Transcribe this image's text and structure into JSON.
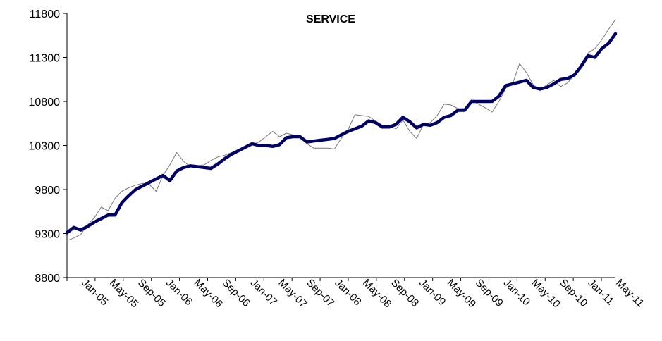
{
  "chart_data": {
    "type": "line",
    "title": "SERVICE",
    "xlabel": "",
    "ylabel": "",
    "ylim": [
      8800,
      11800
    ],
    "yticks": [
      "8800",
      "9300",
      "9800",
      "10300",
      "10800",
      "11300",
      "11800"
    ],
    "xticks": [
      "Jan-05",
      "May-05",
      "Sep-05",
      "Jan-06",
      "May-06",
      "Sep-06",
      "Jan-07",
      "May-07",
      "Sep-07",
      "Jan-08",
      "May-08",
      "Sep-08",
      "Jan-09",
      "May-09",
      "Sep-09",
      "Jan-10",
      "May-10",
      "Sep-10",
      "Jan-11",
      "May-11"
    ],
    "grid": false,
    "legend": "none",
    "colors": {
      "thick": "#000066",
      "thin": "#777777"
    },
    "series": [
      {
        "style": "thin",
        "values": [
          9220,
          9250,
          9290,
          9400,
          9480,
          9600,
          9560,
          9700,
          9780,
          9820,
          9850,
          9870,
          9860,
          9780,
          9960,
          10080,
          10220,
          10120,
          10060,
          10070,
          10080,
          10130,
          10170,
          10190,
          10220,
          10240,
          10290,
          10310,
          10340,
          10400,
          10460,
          10400,
          10440,
          10420,
          10400,
          10320,
          10270,
          10270,
          10270,
          10260,
          10380,
          10480,
          10650,
          10640,
          10630,
          10580,
          10530,
          10520,
          10490,
          10590,
          10460,
          10380,
          10540,
          10560,
          10640,
          10770,
          10760,
          10720,
          10720,
          10820,
          10770,
          10730,
          10680,
          10800,
          10950,
          11000,
          11230,
          11130,
          10990,
          10930,
          10990,
          11040,
          10970,
          11010,
          11100,
          11230,
          11350,
          11400,
          11500,
          11620,
          11730
        ]
      },
      {
        "style": "thick",
        "values": [
          9310,
          9370,
          9340,
          9380,
          9430,
          9470,
          9510,
          9510,
          9650,
          9730,
          9800,
          9840,
          9880,
          9920,
          9960,
          9900,
          10010,
          10050,
          10070,
          10060,
          10050,
          10040,
          10090,
          10150,
          10200,
          10240,
          10280,
          10320,
          10300,
          10300,
          10290,
          10310,
          10390,
          10400,
          10400,
          10340,
          10350,
          10360,
          10370,
          10380,
          10420,
          10460,
          10490,
          10520,
          10580,
          10560,
          10510,
          10510,
          10540,
          10620,
          10570,
          10500,
          10540,
          10530,
          10560,
          10620,
          10640,
          10700,
          10700,
          10800,
          10800,
          10800,
          10800,
          10860,
          10980,
          11000,
          11020,
          11040,
          10960,
          10940,
          10960,
          11000,
          11050,
          11060,
          11100,
          11200,
          11320,
          11300,
          11400,
          11460,
          11570
        ]
      }
    ]
  }
}
